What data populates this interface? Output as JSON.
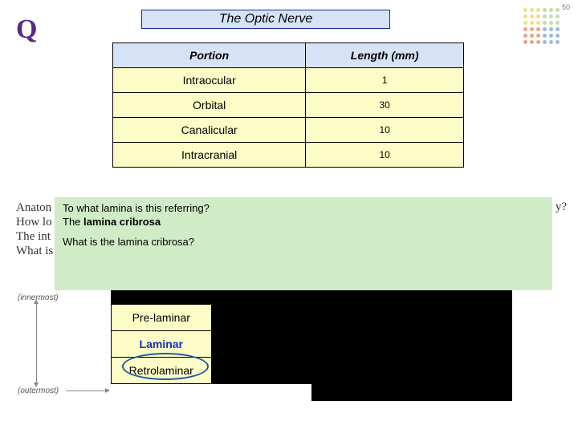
{
  "page_number": "50",
  "q_marker": "Q",
  "title": "The Optic Nerve",
  "dot_colors": {
    "row0": [
      "#f3e07a",
      "#f3e07a",
      "#f3e07a",
      "#bde0a8",
      "#bde0a8",
      "#bde0a8"
    ],
    "row1": [
      "#f3e07a",
      "#f3e07a",
      "#f3e07a",
      "#bde0a8",
      "#bde0a8",
      "#bde0a8"
    ],
    "row2": [
      "#f3e07a",
      "#f3e07a",
      "#f3e07a",
      "#bde0a8",
      "#bde0a8",
      "#bde0a8"
    ],
    "row3": [
      "#e9a388",
      "#e9a388",
      "#e9a388",
      "#9fb8e0",
      "#9fb8e0",
      "#9fb8e0"
    ],
    "row4": [
      "#e9a388",
      "#e9a388",
      "#e9a388",
      "#9fb8e0",
      "#9fb8e0",
      "#9fb8e0"
    ],
    "row5": [
      "#e9a388",
      "#e9a388",
      "#e9a388",
      "#9fb8e0",
      "#9fb8e0",
      "#9fb8e0"
    ]
  },
  "table1": {
    "headers": [
      "Portion",
      "Length (mm)"
    ],
    "rows": [
      [
        "Intraocular",
        "1"
      ],
      [
        "Orbital",
        "30"
      ],
      [
        "Canalicular",
        "10"
      ],
      [
        "Intracranial",
        "10"
      ]
    ]
  },
  "bg_text": {
    "line1": "Anaton",
    "line1_right": "y?",
    "line2": "How lo",
    "line3": "The int",
    "line4": "What is"
  },
  "green_box": {
    "q1": "To what lamina is this referring?",
    "a1_pre": "The ",
    "a1_bold": "lamina cribrosa",
    "q2": "What is the lamina cribrosa?"
  },
  "labels": {
    "innermost": "(innermost)",
    "outermost": "(outermost)"
  },
  "layer_table": {
    "rows": [
      "Pre-laminar",
      "Laminar",
      "Retrolaminar"
    ]
  },
  "colors": {
    "title_bg": "#d6e3f7",
    "title_border": "#1a2a8a",
    "yellow_cell": "#fdfcc6",
    "green_bg": "#d0ecc6",
    "laminar_text": "#1030c0",
    "oval_border": "#1a5aa0",
    "q_color": "#5a2a8a"
  }
}
